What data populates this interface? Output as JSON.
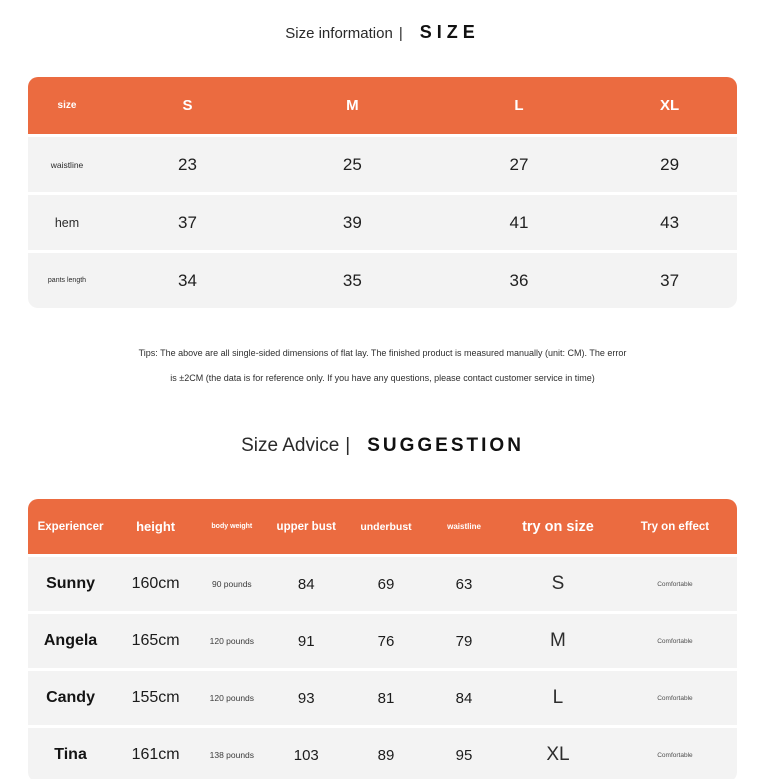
{
  "accent_color": "#EB6B40",
  "row_bg_color": "#F3F3F3",
  "section_size": {
    "title_left": "Size information",
    "title_divider": "|",
    "title_right": "SIZE",
    "table": {
      "header": [
        "size",
        "S",
        "M",
        "L",
        "XL"
      ],
      "rows": [
        {
          "label": "waistline",
          "values": [
            "23",
            "25",
            "27",
            "29"
          ]
        },
        {
          "label": "hem",
          "values": [
            "37",
            "39",
            "41",
            "43"
          ]
        },
        {
          "label": "pants length",
          "values": [
            "34",
            "35",
            "36",
            "37"
          ]
        }
      ]
    },
    "tips_line1": "Tips: The above are all single-sided dimensions of flat lay. The finished product is measured manually (unit: CM). The error",
    "tips_line2": "is ±2CM (the data is for reference only. If you have any questions, please contact customer service in time)"
  },
  "section_advice": {
    "title_left": "Size Advice",
    "title_divider": "|",
    "title_right": "SUGGESTION",
    "table": {
      "header": [
        "Experiencer",
        "height",
        "body weight",
        "upper bust",
        "underbust",
        "waistline",
        "try on size",
        "Try on effect"
      ],
      "rows": [
        {
          "name": "Sunny",
          "height": "160cm",
          "weight": "90 pounds",
          "upper_bust": "84",
          "underbust": "69",
          "waistline": "63",
          "size": "S",
          "effect": "Comfortable"
        },
        {
          "name": "Angela",
          "height": "165cm",
          "weight": "120 pounds",
          "upper_bust": "91",
          "underbust": "76",
          "waistline": "79",
          "size": "M",
          "effect": "Comfortable"
        },
        {
          "name": "Candy",
          "height": "155cm",
          "weight": "120 pounds",
          "upper_bust": "93",
          "underbust": "81",
          "waistline": "84",
          "size": "L",
          "effect": "Comfortable"
        },
        {
          "name": "Tina",
          "height": "161cm",
          "weight": "138 pounds",
          "upper_bust": "103",
          "underbust": "89",
          "waistline": "95",
          "size": "XL",
          "effect": "Comfortable"
        }
      ]
    }
  }
}
